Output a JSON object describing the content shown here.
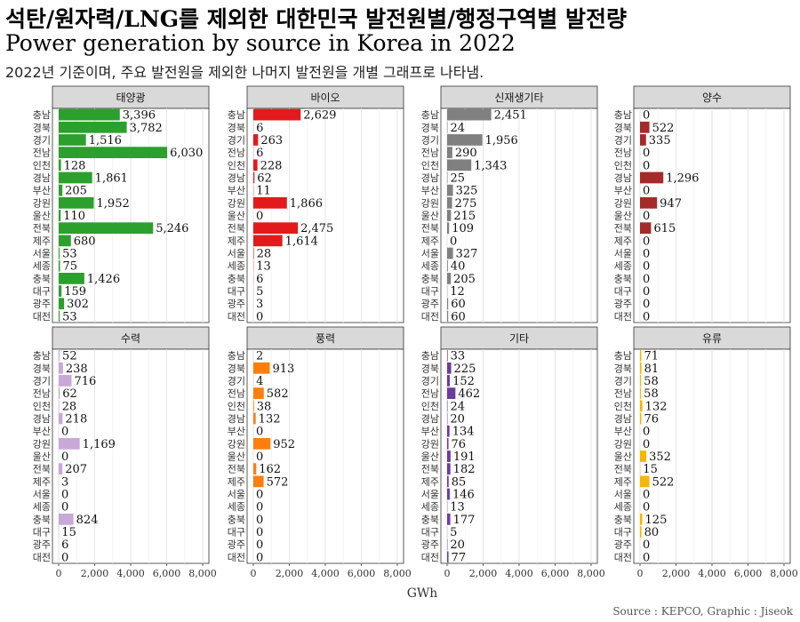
{
  "title_ko": "석탄/원자력/LNG를 제외한 대한민국 발전원별/행정구역별 발전량",
  "title_en": "Power generation by source in Korea in 2022",
  "subtitle": "2022년 기준이며, 주요 발전원을 제외한 나머지 발전원을 개별 그래프로 나타냄.",
  "caption": "Source : KEPCO, Graphic : Jiseok",
  "chart_data": {
    "type": "bar",
    "orientation": "horizontal",
    "layout": "facet-grid-2x4",
    "xlabel": "GWh",
    "xlim": [
      0,
      8000
    ],
    "xticks": [
      0,
      2000,
      4000,
      6000,
      8000
    ],
    "xtick_labels": [
      "0",
      "2,000",
      "4,000",
      "6,000",
      "8,000"
    ],
    "grid": true,
    "categories": [
      "충남",
      "경북",
      "경기",
      "전남",
      "인천",
      "경남",
      "부산",
      "강원",
      "울산",
      "전북",
      "제주",
      "서울",
      "세종",
      "충북",
      "대구",
      "광주",
      "대전"
    ],
    "series": [
      {
        "name": "태양광",
        "color": "#2ca02c",
        "values": [
          3396,
          3782,
          1516,
          6030,
          128,
          1861,
          205,
          1952,
          110,
          5246,
          680,
          53,
          75,
          1426,
          159,
          302,
          53
        ]
      },
      {
        "name": "바이오",
        "color": "#e31a1c",
        "values": [
          2629,
          6,
          263,
          6,
          228,
          62,
          11,
          1866,
          0,
          2475,
          1614,
          28,
          13,
          6,
          5,
          3,
          0
        ]
      },
      {
        "name": "신재생기타",
        "color": "#808080",
        "values": [
          2451,
          24,
          1956,
          290,
          1343,
          25,
          325,
          275,
          215,
          109,
          0,
          327,
          40,
          205,
          12,
          60,
          60
        ]
      },
      {
        "name": "양수",
        "color": "#a52a2a",
        "values": [
          0,
          522,
          335,
          0,
          0,
          1296,
          0,
          947,
          0,
          615,
          0,
          0,
          0,
          0,
          0,
          0,
          0
        ]
      },
      {
        "name": "수력",
        "color": "#c8a8d8",
        "values": [
          52,
          238,
          716,
          62,
          28,
          218,
          0,
          1169,
          0,
          207,
          3,
          0,
          0,
          824,
          15,
          6,
          0
        ]
      },
      {
        "name": "풍력",
        "color": "#ff7f0e",
        "values": [
          2,
          913,
          4,
          582,
          38,
          132,
          0,
          952,
          0,
          162,
          572,
          0,
          0,
          0,
          0,
          0,
          0
        ]
      },
      {
        "name": "기타",
        "color": "#6a3d9a",
        "values": [
          33,
          225,
          152,
          462,
          24,
          20,
          134,
          76,
          191,
          182,
          85,
          146,
          13,
          177,
          5,
          20,
          77
        ]
      },
      {
        "name": "유류",
        "color": "#f5b800",
        "values": [
          71,
          81,
          58,
          58,
          132,
          76,
          0,
          0,
          352,
          15,
          522,
          0,
          0,
          125,
          80,
          0,
          0
        ]
      }
    ]
  }
}
